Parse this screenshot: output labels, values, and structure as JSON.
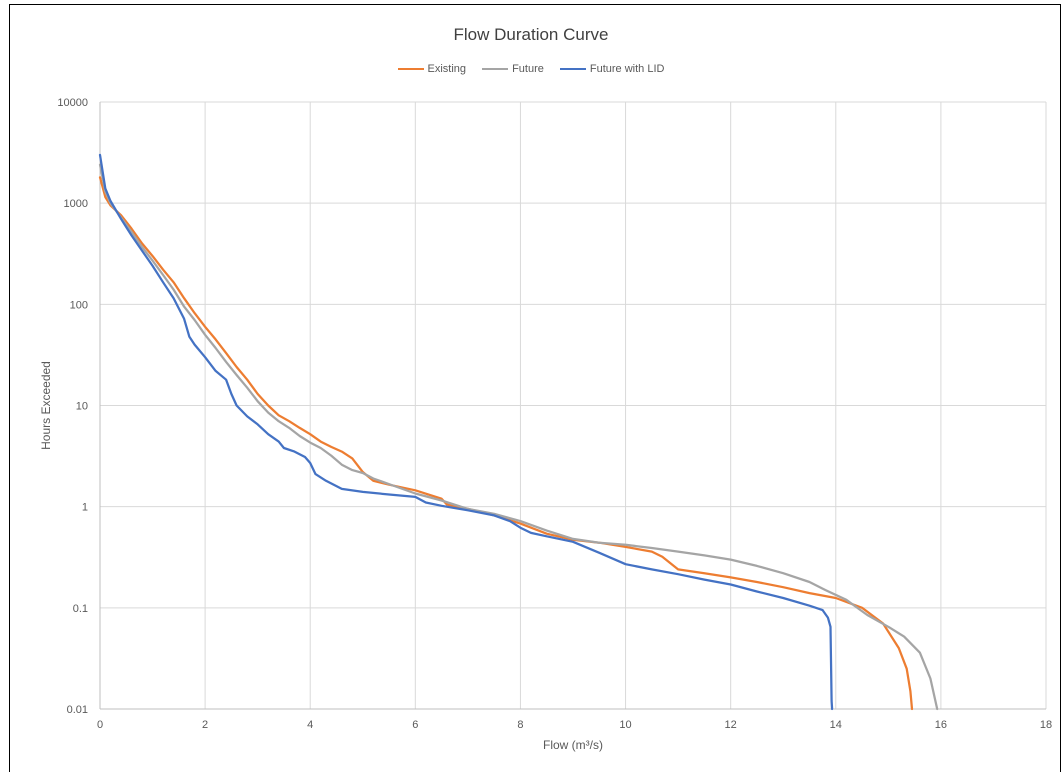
{
  "chart_data": {
    "type": "line",
    "title": "Flow Duration Curve",
    "xlabel": "Flow (m³/s)",
    "ylabel": "Hours Exceeded",
    "xlim": [
      0,
      18
    ],
    "ylim": [
      0.01,
      10000
    ],
    "y_scale": "log",
    "x_ticks": [
      0,
      2,
      4,
      6,
      8,
      10,
      12,
      14,
      16,
      18
    ],
    "y_ticks": [
      10000,
      1000,
      100,
      10,
      1,
      0.1,
      0.01
    ],
    "x_tick_labels": [
      "0",
      "2",
      "4",
      "6",
      "8",
      "10",
      "12",
      "14",
      "16",
      "18"
    ],
    "y_tick_labels": [
      "10000",
      "1000",
      "100",
      "10",
      "1",
      "0.1",
      "0.01"
    ],
    "grid": true,
    "legend_position": "top-center",
    "series": [
      {
        "name": "Existing",
        "color": "#ED7D31",
        "points": [
          [
            0,
            1800
          ],
          [
            0.1,
            1150
          ],
          [
            0.2,
            950
          ],
          [
            0.4,
            760
          ],
          [
            0.6,
            560
          ],
          [
            0.8,
            400
          ],
          [
            1.0,
            300
          ],
          [
            1.2,
            220
          ],
          [
            1.4,
            165
          ],
          [
            1.6,
            115
          ],
          [
            1.8,
            82
          ],
          [
            2.0,
            60
          ],
          [
            2.2,
            45
          ],
          [
            2.4,
            33
          ],
          [
            2.6,
            24
          ],
          [
            2.8,
            18
          ],
          [
            3.0,
            13
          ],
          [
            3.2,
            10
          ],
          [
            3.4,
            8
          ],
          [
            3.6,
            7
          ],
          [
            3.8,
            6
          ],
          [
            4.0,
            5.2
          ],
          [
            4.2,
            4.4
          ],
          [
            4.4,
            3.9
          ],
          [
            4.6,
            3.5
          ],
          [
            4.8,
            3.0
          ],
          [
            5.0,
            2.2
          ],
          [
            5.2,
            1.8
          ],
          [
            5.5,
            1.65
          ],
          [
            6.0,
            1.45
          ],
          [
            6.5,
            1.2
          ],
          [
            6.6,
            1.05
          ],
          [
            7.0,
            0.95
          ],
          [
            7.5,
            0.82
          ],
          [
            8.0,
            0.68
          ],
          [
            8.5,
            0.54
          ],
          [
            9.0,
            0.47
          ],
          [
            9.5,
            0.44
          ],
          [
            10.0,
            0.4
          ],
          [
            10.5,
            0.36
          ],
          [
            10.7,
            0.32
          ],
          [
            11.0,
            0.24
          ],
          [
            11.5,
            0.22
          ],
          [
            12.0,
            0.2
          ],
          [
            12.5,
            0.18
          ],
          [
            13.0,
            0.16
          ],
          [
            13.5,
            0.14
          ],
          [
            14.0,
            0.125
          ],
          [
            14.5,
            0.1
          ],
          [
            14.9,
            0.07
          ],
          [
            15.2,
            0.04
          ],
          [
            15.35,
            0.025
          ],
          [
            15.42,
            0.015
          ],
          [
            15.45,
            0.01
          ]
        ]
      },
      {
        "name": "Future",
        "color": "#A5A5A5",
        "points": [
          [
            0,
            2400
          ],
          [
            0.1,
            1300
          ],
          [
            0.2,
            1000
          ],
          [
            0.4,
            720
          ],
          [
            0.6,
            520
          ],
          [
            0.8,
            370
          ],
          [
            1.0,
            270
          ],
          [
            1.2,
            195
          ],
          [
            1.4,
            140
          ],
          [
            1.6,
            95
          ],
          [
            1.8,
            70
          ],
          [
            2.0,
            50
          ],
          [
            2.2,
            37
          ],
          [
            2.4,
            27
          ],
          [
            2.6,
            20
          ],
          [
            2.8,
            15
          ],
          [
            3.0,
            11
          ],
          [
            3.2,
            8.5
          ],
          [
            3.4,
            7
          ],
          [
            3.6,
            6
          ],
          [
            3.8,
            5
          ],
          [
            4.0,
            4.3
          ],
          [
            4.2,
            3.8
          ],
          [
            4.4,
            3.2
          ],
          [
            4.6,
            2.6
          ],
          [
            4.8,
            2.3
          ],
          [
            5.0,
            2.15
          ],
          [
            5.2,
            1.9
          ],
          [
            5.6,
            1.6
          ],
          [
            6.0,
            1.35
          ],
          [
            6.5,
            1.15
          ],
          [
            7.0,
            0.95
          ],
          [
            7.5,
            0.85
          ],
          [
            8.0,
            0.72
          ],
          [
            8.5,
            0.58
          ],
          [
            9.0,
            0.48
          ],
          [
            9.5,
            0.44
          ],
          [
            10.0,
            0.42
          ],
          [
            10.5,
            0.39
          ],
          [
            11.0,
            0.36
          ],
          [
            11.5,
            0.33
          ],
          [
            12.0,
            0.3
          ],
          [
            12.5,
            0.26
          ],
          [
            13.0,
            0.22
          ],
          [
            13.5,
            0.18
          ],
          [
            13.8,
            0.15
          ],
          [
            14.2,
            0.12
          ],
          [
            14.6,
            0.085
          ],
          [
            15.0,
            0.065
          ],
          [
            15.3,
            0.052
          ],
          [
            15.6,
            0.036
          ],
          [
            15.8,
            0.02
          ],
          [
            15.93,
            0.01
          ]
        ]
      },
      {
        "name": "Future with LID",
        "color": "#4472C4",
        "points": [
          [
            0,
            3000
          ],
          [
            0.1,
            1400
          ],
          [
            0.2,
            1050
          ],
          [
            0.4,
            700
          ],
          [
            0.6,
            480
          ],
          [
            0.8,
            340
          ],
          [
            1.0,
            240
          ],
          [
            1.2,
            165
          ],
          [
            1.4,
            115
          ],
          [
            1.6,
            72
          ],
          [
            1.7,
            48
          ],
          [
            1.8,
            40
          ],
          [
            2.0,
            30
          ],
          [
            2.2,
            22
          ],
          [
            2.4,
            18
          ],
          [
            2.5,
            13
          ],
          [
            2.6,
            10
          ],
          [
            2.8,
            7.8
          ],
          [
            3.0,
            6.5
          ],
          [
            3.2,
            5.2
          ],
          [
            3.4,
            4.4
          ],
          [
            3.5,
            3.8
          ],
          [
            3.7,
            3.5
          ],
          [
            3.9,
            3.1
          ],
          [
            4.0,
            2.7
          ],
          [
            4.1,
            2.1
          ],
          [
            4.3,
            1.8
          ],
          [
            4.6,
            1.5
          ],
          [
            5.0,
            1.4
          ],
          [
            5.5,
            1.32
          ],
          [
            6.0,
            1.25
          ],
          [
            6.2,
            1.1
          ],
          [
            6.5,
            1.02
          ],
          [
            7.0,
            0.92
          ],
          [
            7.5,
            0.82
          ],
          [
            7.8,
            0.72
          ],
          [
            8.0,
            0.62
          ],
          [
            8.2,
            0.55
          ],
          [
            8.5,
            0.51
          ],
          [
            9.0,
            0.45
          ],
          [
            9.5,
            0.35
          ],
          [
            10.0,
            0.27
          ],
          [
            10.5,
            0.24
          ],
          [
            11.0,
            0.215
          ],
          [
            11.5,
            0.19
          ],
          [
            12.0,
            0.17
          ],
          [
            12.5,
            0.145
          ],
          [
            13.0,
            0.125
          ],
          [
            13.5,
            0.105
          ],
          [
            13.75,
            0.095
          ],
          [
            13.85,
            0.08
          ],
          [
            13.9,
            0.065
          ],
          [
            13.92,
            0.012
          ],
          [
            13.93,
            0.01
          ]
        ]
      }
    ]
  }
}
